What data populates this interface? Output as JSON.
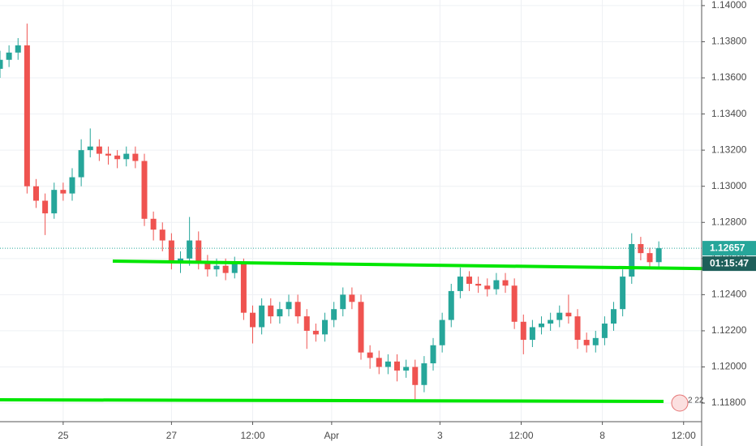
{
  "chart_data": {
    "type": "candlestick",
    "x": [
      0,
      4,
      8,
      12,
      16,
      20,
      24,
      28,
      32,
      36,
      40,
      44,
      48,
      52,
      56,
      60,
      64,
      68,
      72,
      76,
      80,
      84,
      88,
      92,
      96,
      100,
      104,
      108,
      112,
      116,
      120,
      124,
      128,
      132,
      136,
      140,
      144,
      148,
      152,
      156,
      160,
      164,
      168,
      172,
      176,
      180,
      184,
      188,
      192,
      196,
      200,
      204,
      208,
      212,
      216,
      220,
      224,
      228,
      232,
      236,
      240,
      244,
      248,
      252,
      256,
      260,
      264,
      268,
      272,
      276,
      280,
      284,
      288,
      292
    ],
    "open": [
      1.1365,
      1.137,
      1.1374,
      1.1378,
      1.13,
      1.1292,
      1.1285,
      1.1298,
      1.1296,
      1.1305,
      1.132,
      1.1322,
      1.1318,
      1.1317,
      1.1315,
      1.1318,
      1.1314,
      1.1282,
      1.1276,
      1.127,
      1.1258,
      1.126,
      1.127,
      1.1258,
      1.1254,
      1.1256,
      1.1252,
      1.1257,
      1.123,
      1.1222,
      1.1234,
      1.1228,
      1.1232,
      1.1236,
      1.1228,
      1.122,
      1.1218,
      1.1226,
      1.1232,
      1.124,
      1.1236,
      1.1208,
      1.1205,
      1.12,
      1.1203,
      1.1198,
      1.12,
      1.119,
      1.1202,
      1.1212,
      1.1226,
      1.1242,
      1.125,
      1.1246,
      1.1245,
      1.1243,
      1.1248,
      1.1245,
      1.1225,
      1.1215,
      1.1222,
      1.1224,
      1.1226,
      1.123,
      1.1228,
      1.1215,
      1.1212,
      1.1216,
      1.1224,
      1.1232,
      1.125,
      1.1268,
      1.1263,
      1.1258
    ],
    "high": [
      1.1375,
      1.1378,
      1.1382,
      1.139,
      1.1304,
      1.1296,
      1.1302,
      1.1302,
      1.131,
      1.1326,
      1.1332,
      1.1326,
      1.1322,
      1.132,
      1.1322,
      1.1322,
      1.1318,
      1.1286,
      1.128,
      1.1274,
      1.1264,
      1.1283,
      1.1275,
      1.1262,
      1.126,
      1.126,
      1.1261,
      1.126,
      1.1234,
      1.1238,
      1.1238,
      1.1236,
      1.124,
      1.124,
      1.1232,
      1.1224,
      1.123,
      1.1236,
      1.1244,
      1.1244,
      1.124,
      1.1212,
      1.1209,
      1.1207,
      1.1207,
      1.1204,
      1.1204,
      1.1206,
      1.1216,
      1.123,
      1.1246,
      1.1255,
      1.1253,
      1.125,
      1.1249,
      1.1252,
      1.1252,
      1.1249,
      1.1229,
      1.1226,
      1.1228,
      1.123,
      1.1234,
      1.124,
      1.1232,
      1.1219,
      1.122,
      1.1228,
      1.1236,
      1.1254,
      1.1274,
      1.1272,
      1.1266,
      1.12695
    ],
    "low": [
      1.136,
      1.1366,
      1.137,
      1.1296,
      1.1288,
      1.1273,
      1.1282,
      1.1292,
      1.1292,
      1.13,
      1.1316,
      1.1314,
      1.1312,
      1.131,
      1.1311,
      1.131,
      1.1278,
      1.127,
      1.1264,
      1.1254,
      1.1252,
      1.1256,
      1.1254,
      1.125,
      1.125,
      1.1248,
      1.1249,
      1.1226,
      1.1213,
      1.1218,
      1.1224,
      1.1224,
      1.1228,
      1.1224,
      1.121,
      1.1214,
      1.1214,
      1.1222,
      1.1228,
      1.1232,
      1.1204,
      1.1199,
      1.1196,
      1.1196,
      1.1192,
      1.1194,
      1.1182,
      1.1186,
      1.1198,
      1.1208,
      1.1222,
      1.1238,
      1.1242,
      1.1241,
      1.1239,
      1.124,
      1.1241,
      1.1221,
      1.1207,
      1.1211,
      1.1218,
      1.122,
      1.1222,
      1.1224,
      1.121,
      1.1208,
      1.1208,
      1.1212,
      1.122,
      1.1228,
      1.1246,
      1.1259,
      1.1254,
      1.1254
    ],
    "close": [
      1.137,
      1.1374,
      1.1378,
      1.13,
      1.1292,
      1.1285,
      1.1298,
      1.1296,
      1.1305,
      1.132,
      1.1322,
      1.1318,
      1.1317,
      1.1315,
      1.1318,
      1.1314,
      1.1282,
      1.1276,
      1.127,
      1.1258,
      1.126,
      1.127,
      1.1258,
      1.1254,
      1.1256,
      1.1252,
      1.1257,
      1.123,
      1.1222,
      1.1234,
      1.1228,
      1.1232,
      1.1236,
      1.1228,
      1.122,
      1.1218,
      1.1226,
      1.1232,
      1.124,
      1.1236,
      1.1208,
      1.1205,
      1.12,
      1.1203,
      1.1198,
      1.12,
      1.119,
      1.1202,
      1.1212,
      1.1226,
      1.1242,
      1.125,
      1.1246,
      1.1245,
      1.1243,
      1.1248,
      1.1245,
      1.1225,
      1.1215,
      1.1222,
      1.1224,
      1.1226,
      1.123,
      1.1228,
      1.1215,
      1.1212,
      1.1216,
      1.1224,
      1.1232,
      1.125,
      1.1268,
      1.1263,
      1.1258,
      1.12657
    ],
    "up_color": "#26a69a",
    "down_color": "#ef5350",
    "xlim": [
      0,
      311
    ],
    "xticks": [
      {
        "value": 28,
        "label": "25"
      },
      {
        "value": 76,
        "label": "27"
      },
      {
        "value": 112,
        "label": "12:00"
      },
      {
        "value": 147,
        "label": "Apr"
      },
      {
        "value": 195,
        "label": "3"
      },
      {
        "value": 231,
        "label": "12:00"
      },
      {
        "value": 267,
        "label": "8"
      },
      {
        "value": 303,
        "label": "12:00"
      }
    ],
    "ylim": [
      1.11697,
      1.14031
    ],
    "yticks": [
      {
        "value": 1.118,
        "label": "1.11800"
      },
      {
        "value": 1.12,
        "label": "1.12000"
      },
      {
        "value": 1.122,
        "label": "1.12200"
      },
      {
        "value": 1.124,
        "label": "1.12400"
      },
      {
        "value": 1.126,
        "label": "1.12600"
      },
      {
        "value": 1.128,
        "label": "1.12800"
      },
      {
        "value": 1.13,
        "label": "1.13000"
      },
      {
        "value": 1.132,
        "label": "1.13200"
      },
      {
        "value": 1.134,
        "label": "1.13400"
      },
      {
        "value": 1.136,
        "label": "1.13600"
      },
      {
        "value": 1.138,
        "label": "1.13800"
      },
      {
        "value": 1.14,
        "label": "1.14000"
      }
    ],
    "grid": true,
    "last_price": {
      "value": 1.12657,
      "label": "1.12657"
    },
    "countdown": "01:15:47",
    "badge": "2 22"
  }
}
